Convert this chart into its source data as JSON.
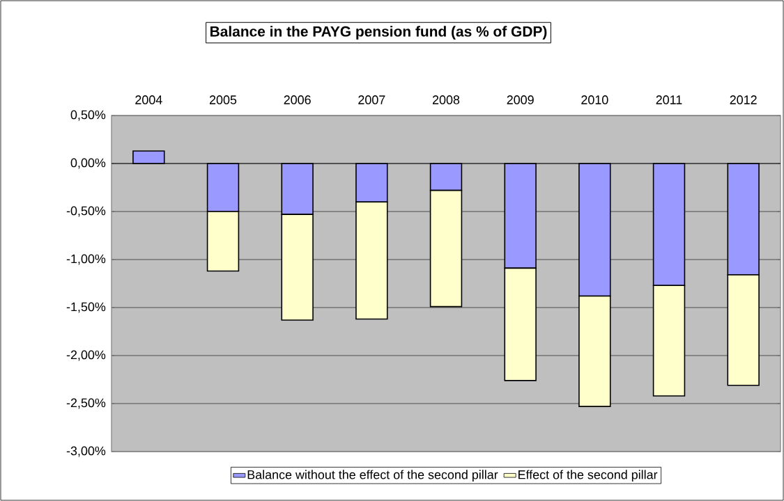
{
  "chart_data": {
    "type": "bar",
    "title": "Balance in the PAYG pension fund (as % of GDP)",
    "categories": [
      "2004",
      "2005",
      "2006",
      "2007",
      "2008",
      "2009",
      "2010",
      "2011",
      "2012"
    ],
    "series": [
      {
        "name": "Balance without the effect of the second pillar",
        "color": "#9999ff",
        "values": [
          0.13,
          -0.5,
          -0.53,
          -0.4,
          -0.28,
          -1.09,
          -1.38,
          -1.27,
          -1.16
        ]
      },
      {
        "name": "Effect of the second pillar",
        "color": "#ffffcc",
        "values": [
          null,
          -0.62,
          -1.1,
          -1.22,
          -1.21,
          -1.17,
          -1.15,
          -1.15,
          -1.15
        ]
      }
    ],
    "stacked": true,
    "ylim": [
      -3,
      0.5
    ],
    "yticks": [
      {
        "value": -3,
        "label": "-3,00%"
      },
      {
        "value": -2.5,
        "label": "-2,50%"
      },
      {
        "value": -2,
        "label": "-2,00%"
      },
      {
        "value": -1.5,
        "label": "-1,50%"
      },
      {
        "value": -1,
        "label": "-1,00%"
      },
      {
        "value": -0.5,
        "label": "-0,50%"
      },
      {
        "value": 0,
        "label": "0,00%"
      },
      {
        "value": 0.5,
        "label": "0,50%"
      }
    ],
    "grid": "y",
    "legend": "bottom"
  }
}
